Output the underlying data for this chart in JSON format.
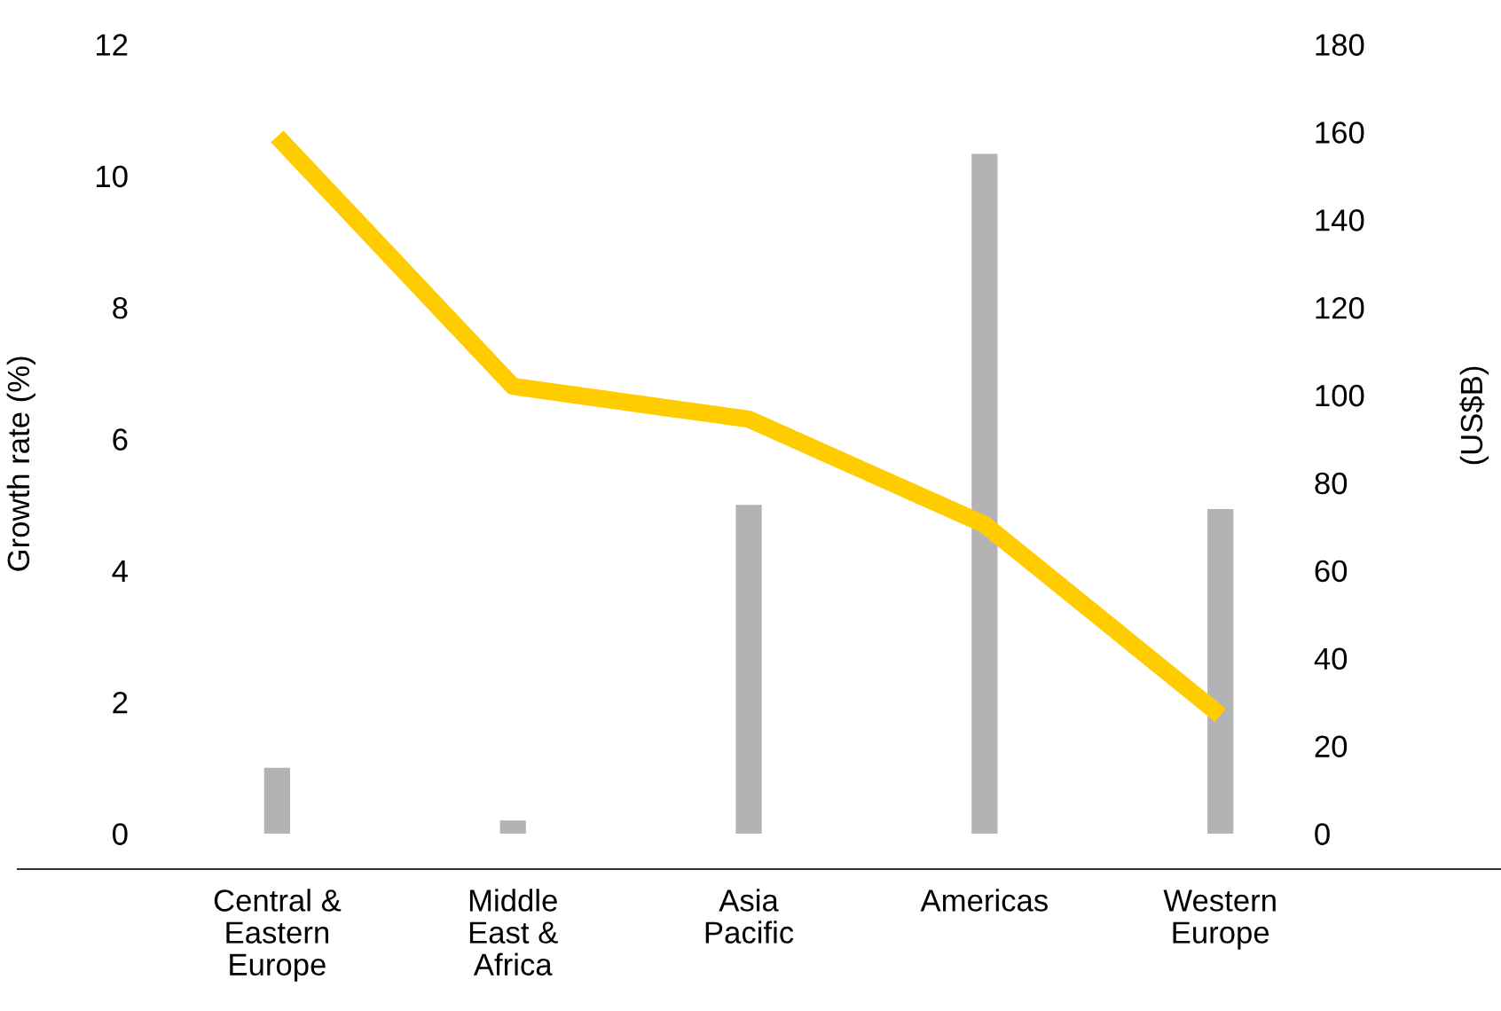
{
  "chart_data": {
    "type": "bar",
    "ylabel": "Growth rate (%)",
    "y2label": "(US$B)",
    "categories": [
      "Central &\nEastern\nEurope",
      "Middle\nEast &\nAfrica",
      "Asia\nPacific",
      "Americas",
      "Western\nEurope"
    ],
    "series": [
      {
        "axis": "y2",
        "color": "#b3b3b6",
        "values": [
          15,
          3,
          75,
          155,
          74
        ]
      },
      {
        "type": "line",
        "axis": "y",
        "color": "#ffcc00",
        "values": [
          10.6,
          6.8,
          6.3,
          4.7,
          1.8
        ]
      }
    ],
    "ylim": [
      -0.54,
      12
    ],
    "yticks": [
      0,
      2,
      4,
      6,
      8,
      10,
      12
    ],
    "y2lim": [
      -8.1,
      180
    ],
    "y2ticks": [
      0,
      20,
      40,
      60,
      80,
      100,
      120,
      140,
      160,
      180
    ],
    "grid": false,
    "legend": false,
    "marker": "none",
    "line_style": "solid"
  }
}
